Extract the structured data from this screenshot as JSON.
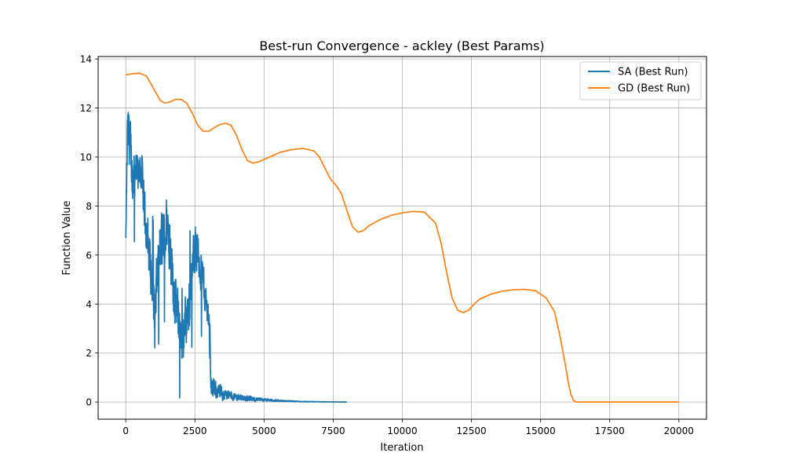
{
  "chart_data": {
    "type": "line",
    "title": "Best-run Convergence - ackley (Best Params)",
    "xlabel": "Iteration",
    "ylabel": "Function Value",
    "xlim": [
      -1000,
      21000
    ],
    "ylim": [
      -0.7,
      14.1
    ],
    "xticks": [
      0,
      2500,
      5000,
      7500,
      10000,
      12500,
      15000,
      17500,
      20000
    ],
    "xtick_labels": [
      "0",
      "2500",
      "5000",
      "7500",
      "10000",
      "12500",
      "15000",
      "17500",
      "20000"
    ],
    "yticks": [
      0,
      2,
      4,
      6,
      8,
      10,
      12,
      14
    ],
    "ytick_labels": [
      "0",
      "2",
      "4",
      "6",
      "8",
      "10",
      "12",
      "14"
    ],
    "grid": true,
    "legend_position": "top-right",
    "series": [
      {
        "name": "SA (Best Run)",
        "color": "#1f77b4",
        "style": "noisy",
        "x": [
          0,
          50,
          100,
          150,
          200,
          250,
          300,
          350,
          400,
          450,
          500,
          550,
          600,
          650,
          700,
          800,
          900,
          1000,
          1050,
          1100,
          1150,
          1200,
          1300,
          1400,
          1500,
          1600,
          1700,
          1800,
          1900,
          2000,
          2050,
          2100,
          2200,
          2300,
          2400,
          2500,
          2600,
          2700,
          2800,
          2900,
          3000,
          3050,
          3100,
          3200,
          3300,
          3400,
          3500,
          3600,
          3800,
          4000,
          4200,
          4400,
          4600,
          4800,
          5000,
          5200,
          5500,
          5800,
          6100,
          6400,
          6700,
          7000,
          7300,
          7600,
          8000
        ],
        "center": [
          6.7,
          10.5,
          11.0,
          10.5,
          9.8,
          9.0,
          9.5,
          9.8,
          9.2,
          9.0,
          9.3,
          9.5,
          9.0,
          8.0,
          7.5,
          6.5,
          5.5,
          4.5,
          3.0,
          4.5,
          5.5,
          6.0,
          6.5,
          6.8,
          7.2,
          6.5,
          5.0,
          4.0,
          3.5,
          3.0,
          1.5,
          3.0,
          3.5,
          4.0,
          5.5,
          6.5,
          6.0,
          5.5,
          5.0,
          4.0,
          3.5,
          1.5,
          0.6,
          0.5,
          0.45,
          0.4,
          0.35,
          0.3,
          0.25,
          0.2,
          0.18,
          0.15,
          0.12,
          0.1,
          0.08,
          0.07,
          0.05,
          0.04,
          0.03,
          0.02,
          0.015,
          0.01,
          0.008,
          0.005,
          0.0
        ],
        "amplitude": [
          0.0,
          1.8,
          1.6,
          1.5,
          1.5,
          1.4,
          1.4,
          1.3,
          1.3,
          1.3,
          1.2,
          1.2,
          1.2,
          1.2,
          1.2,
          1.3,
          1.4,
          1.5,
          1.5,
          1.5,
          1.6,
          1.6,
          1.6,
          1.6,
          1.7,
          1.6,
          1.5,
          1.4,
          1.4,
          1.4,
          1.4,
          1.4,
          1.4,
          1.4,
          1.4,
          1.3,
          1.3,
          1.2,
          1.2,
          1.0,
          0.8,
          0.7,
          0.6,
          0.5,
          0.45,
          0.4,
          0.35,
          0.3,
          0.25,
          0.2,
          0.18,
          0.15,
          0.12,
          0.1,
          0.09,
          0.07,
          0.05,
          0.04,
          0.03,
          0.02,
          0.015,
          0.01,
          0.008,
          0.005,
          0.0
        ]
      },
      {
        "name": "GD (Best Run)",
        "color": "#ff7f0e",
        "style": "smooth",
        "x": [
          0,
          250,
          500,
          750,
          1000,
          1250,
          1400,
          1600,
          1800,
          2000,
          2200,
          2400,
          2600,
          2800,
          3000,
          3200,
          3400,
          3600,
          3800,
          4000,
          4200,
          4400,
          4600,
          4800,
          5000,
          5300,
          5600,
          6000,
          6400,
          6800,
          7000,
          7200,
          7400,
          7600,
          7800,
          8000,
          8200,
          8400,
          8600,
          8800,
          9200,
          9600,
          10000,
          10400,
          10800,
          11200,
          11400,
          11600,
          11800,
          12000,
          12200,
          12400,
          12600,
          12800,
          13200,
          13600,
          14000,
          14400,
          14800,
          15200,
          15500,
          15700,
          15900,
          16000,
          16100,
          16200,
          16300,
          16500,
          17000,
          18000,
          19000,
          20000
        ],
        "y": [
          13.35,
          13.4,
          13.42,
          13.3,
          12.8,
          12.3,
          12.2,
          12.25,
          12.35,
          12.35,
          12.2,
          11.8,
          11.3,
          11.05,
          11.05,
          11.2,
          11.32,
          11.38,
          11.3,
          10.9,
          10.3,
          9.85,
          9.75,
          9.8,
          9.9,
          10.05,
          10.2,
          10.3,
          10.35,
          10.25,
          10.0,
          9.55,
          9.1,
          8.85,
          8.5,
          7.8,
          7.15,
          6.93,
          7.0,
          7.2,
          7.45,
          7.62,
          7.72,
          7.78,
          7.75,
          7.3,
          6.5,
          5.3,
          4.25,
          3.75,
          3.65,
          3.75,
          4.0,
          4.2,
          4.4,
          4.52,
          4.58,
          4.6,
          4.55,
          4.25,
          3.7,
          2.7,
          1.5,
          0.8,
          0.3,
          0.05,
          0.0,
          0.0,
          0.0,
          0.0,
          0.0,
          0.0
        ]
      }
    ]
  }
}
